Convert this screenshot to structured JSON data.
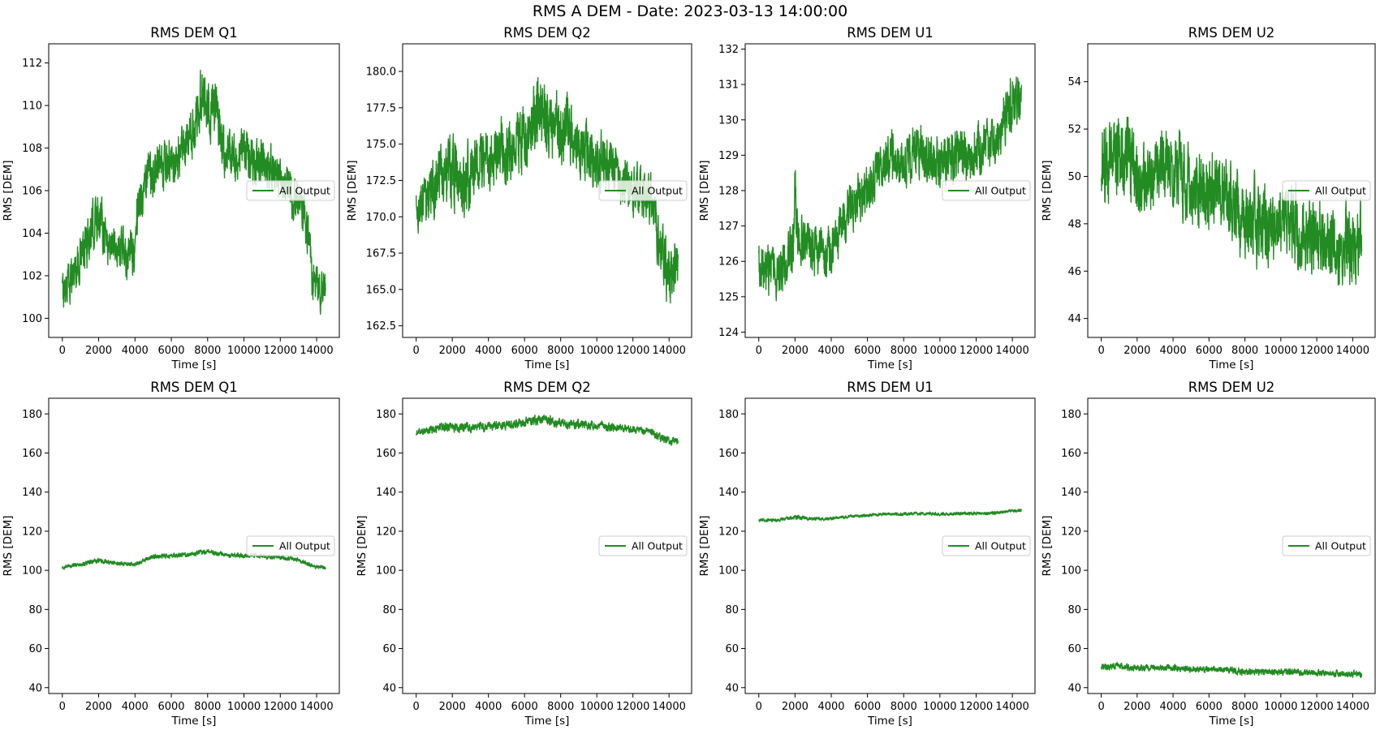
{
  "figure_title": "RMS A DEM - Date: 2023-03-13 14:00:00",
  "chart_data": [
    {
      "type": "line",
      "title": "RMS DEM Q1",
      "xlabel": "Time [s]",
      "ylabel": "RMS [DEM]",
      "xlim": [
        -750,
        15250
      ],
      "ylim": [
        99.1,
        112.9
      ],
      "xticks": [
        0,
        2000,
        4000,
        6000,
        8000,
        10000,
        12000,
        14000
      ],
      "yticks": [
        100,
        102,
        104,
        106,
        108,
        110,
        112
      ],
      "legend": {
        "position": "center-right",
        "entries": [
          "All Output"
        ]
      },
      "grid": false,
      "color": "#228b22",
      "series": [
        {
          "name": "All Output",
          "x": [
            0,
            500,
            1000,
            1500,
            2000,
            2200,
            2500,
            3000,
            3500,
            4000,
            4100,
            4500,
            5000,
            5500,
            6000,
            6500,
            7000,
            7500,
            7700,
            8000,
            8500,
            8800,
            9000,
            9500,
            10000,
            10500,
            11000,
            11500,
            12000,
            12500,
            13000,
            13300,
            13600,
            13800,
            14000,
            14500
          ],
          "center": [
            101.2,
            102.0,
            102.8,
            103.8,
            105.0,
            104.6,
            103.5,
            103.4,
            103.0,
            103.0,
            105.0,
            106.2,
            107.0,
            106.9,
            107.2,
            107.6,
            108.3,
            109.5,
            110.8,
            109.8,
            109.6,
            108.2,
            107.5,
            107.6,
            107.8,
            107.4,
            107.2,
            107.0,
            106.5,
            106.0,
            105.4,
            105.0,
            103.5,
            101.5,
            101.5,
            101.5
          ],
          "band": [
            1.2,
            1.3,
            1.3,
            1.4,
            1.6,
            1.5,
            1.4,
            1.3,
            1.3,
            1.3,
            1.5,
            1.5,
            1.5,
            1.5,
            1.5,
            1.5,
            1.6,
            1.6,
            1.7,
            1.6,
            1.6,
            1.5,
            1.4,
            1.4,
            1.4,
            1.4,
            1.4,
            1.3,
            1.3,
            1.3,
            1.3,
            1.3,
            1.3,
            1.3,
            1.3,
            1.3
          ]
        }
      ]
    },
    {
      "type": "line",
      "title": "RMS DEM Q2",
      "xlabel": "Time [s]",
      "ylabel": "RMS [DEM]",
      "xlim": [
        -750,
        15250
      ],
      "ylim": [
        161.7,
        181.9
      ],
      "xticks": [
        0,
        2000,
        4000,
        6000,
        8000,
        10000,
        12000,
        14000
      ],
      "yticks": [
        162.5,
        165.0,
        167.5,
        170.0,
        172.5,
        175.0,
        177.5,
        180.0
      ],
      "ytick_labels": [
        "162.5",
        "165.0",
        "167.5",
        "170.0",
        "172.5",
        "175.0",
        "177.5",
        "180.0"
      ],
      "legend": {
        "position": "center-right",
        "entries": [
          "All Output"
        ]
      },
      "grid": false,
      "color": "#228b22",
      "series": [
        {
          "name": "All Output",
          "x": [
            0,
            500,
            1000,
            1500,
            2000,
            2500,
            3000,
            3500,
            4000,
            4500,
            5000,
            5500,
            6000,
            6500,
            7000,
            7500,
            8000,
            8500,
            9000,
            9500,
            10000,
            10500,
            11000,
            11500,
            12000,
            12500,
            13000,
            13500,
            14000,
            14500
          ],
          "center": [
            170.5,
            171.0,
            172.0,
            173.0,
            173.5,
            172.0,
            173.0,
            174.5,
            173.5,
            175.0,
            174.5,
            175.0,
            175.5,
            177.0,
            177.5,
            176.5,
            175.5,
            176.0,
            174.5,
            174.0,
            174.0,
            173.5,
            173.0,
            172.5,
            172.0,
            171.5,
            171.0,
            168.0,
            166.0,
            166.0
          ],
          "band": [
            2.0,
            2.2,
            2.5,
            2.6,
            3.0,
            2.6,
            2.8,
            2.8,
            2.6,
            2.8,
            2.8,
            2.8,
            3.0,
            3.2,
            3.2,
            3.0,
            3.0,
            3.0,
            2.8,
            2.6,
            2.6,
            2.4,
            2.4,
            2.2,
            2.2,
            2.2,
            2.2,
            2.4,
            2.6,
            2.4
          ]
        }
      ]
    },
    {
      "type": "line",
      "title": "RMS DEM U1",
      "xlabel": "Time [s]",
      "ylabel": "RMS [DEM]",
      "xlim": [
        -750,
        15250
      ],
      "ylim": [
        123.85,
        132.15
      ],
      "xticks": [
        0,
        2000,
        4000,
        6000,
        8000,
        10000,
        12000,
        14000
      ],
      "yticks": [
        124,
        125,
        126,
        127,
        128,
        129,
        130,
        131,
        132
      ],
      "legend": {
        "position": "center-right",
        "entries": [
          "All Output"
        ]
      },
      "grid": false,
      "color": "#228b22",
      "series": [
        {
          "name": "All Output",
          "x": [
            0,
            500,
            1000,
            1500,
            1900,
            2000,
            2100,
            2500,
            3000,
            3500,
            4000,
            4500,
            5000,
            5500,
            6000,
            6500,
            7000,
            7500,
            8000,
            8500,
            9000,
            9500,
            10000,
            10500,
            11000,
            11500,
            12000,
            12500,
            13000,
            13500,
            14000,
            14500
          ],
          "center": [
            125.7,
            125.8,
            125.6,
            126.0,
            126.2,
            128.0,
            126.8,
            126.5,
            126.3,
            126.2,
            126.5,
            126.8,
            127.5,
            127.8,
            128.0,
            128.5,
            128.8,
            129.0,
            128.8,
            129.0,
            129.1,
            128.9,
            128.8,
            129.0,
            129.1,
            129.0,
            129.1,
            129.2,
            129.2,
            130.0,
            130.5,
            130.6
          ],
          "band": [
            0.9,
            0.9,
            0.9,
            0.9,
            1.0,
            1.2,
            1.0,
            0.9,
            0.9,
            0.9,
            0.9,
            0.9,
            0.9,
            0.9,
            0.9,
            0.9,
            0.9,
            0.9,
            0.9,
            0.9,
            0.9,
            0.9,
            0.9,
            0.9,
            0.9,
            0.9,
            0.9,
            0.9,
            0.9,
            1.0,
            1.0,
            0.9
          ]
        }
      ]
    },
    {
      "type": "line",
      "title": "RMS DEM U2",
      "xlabel": "Time [s]",
      "ylabel": "RMS [DEM]",
      "xlim": [
        -750,
        15250
      ],
      "ylim": [
        43.2,
        55.6
      ],
      "xticks": [
        0,
        2000,
        4000,
        6000,
        8000,
        10000,
        12000,
        14000
      ],
      "yticks": [
        44,
        46,
        48,
        50,
        52,
        54
      ],
      "legend": {
        "position": "center-right",
        "entries": [
          "All Output"
        ]
      },
      "grid": false,
      "color": "#228b22",
      "series": [
        {
          "name": "All Output",
          "x": [
            0,
            500,
            1000,
            1500,
            2000,
            2500,
            3000,
            3500,
            4000,
            4500,
            5000,
            5500,
            6000,
            6500,
            7000,
            7500,
            8000,
            8500,
            9000,
            9500,
            10000,
            10500,
            11000,
            11500,
            12000,
            12500,
            13000,
            13500,
            14000,
            14500
          ],
          "center": [
            50.5,
            51.0,
            51.0,
            50.8,
            50.0,
            50.0,
            50.0,
            50.5,
            50.3,
            50.0,
            49.5,
            49.5,
            49.3,
            49.2,
            49.2,
            48.8,
            48.0,
            48.0,
            48.0,
            47.8,
            48.0,
            48.0,
            47.8,
            47.5,
            47.5,
            47.2,
            47.0,
            47.2,
            47.0,
            47.0
          ],
          "band": [
            2.0,
            2.2,
            2.2,
            2.2,
            2.0,
            2.0,
            2.0,
            2.0,
            2.0,
            2.0,
            2.0,
            2.0,
            2.0,
            2.0,
            2.0,
            2.0,
            2.2,
            2.2,
            2.0,
            2.0,
            2.0,
            2.0,
            2.0,
            2.0,
            2.0,
            2.0,
            2.0,
            2.0,
            2.0,
            2.0
          ]
        }
      ]
    },
    {
      "type": "line",
      "title": "RMS DEM Q1",
      "xlabel": "Time [s]",
      "ylabel": "RMS [DEM]",
      "xlim": [
        -750,
        15250
      ],
      "ylim": [
        37,
        188
      ],
      "xticks": [
        0,
        2000,
        4000,
        6000,
        8000,
        10000,
        12000,
        14000
      ],
      "yticks": [
        40,
        60,
        80,
        100,
        120,
        140,
        160,
        180
      ],
      "legend": {
        "position": "center-right",
        "entries": [
          "All Output"
        ]
      },
      "grid": false,
      "color": "#228b22",
      "series": [
        {
          "name": "All Output",
          "x": [
            0,
            1000,
            2000,
            3000,
            4000,
            5000,
            6000,
            7000,
            8000,
            9000,
            10000,
            11000,
            12000,
            13000,
            13600,
            14000,
            14500
          ],
          "center": [
            101.5,
            103.0,
            105.0,
            103.5,
            103.0,
            107.0,
            107.2,
            108.0,
            109.8,
            107.8,
            107.6,
            107.2,
            106.5,
            105.4,
            103.0,
            101.5,
            101.5
          ],
          "band": [
            1.3,
            1.3,
            1.6,
            1.3,
            1.3,
            1.5,
            1.5,
            1.5,
            1.6,
            1.5,
            1.4,
            1.4,
            1.3,
            1.3,
            1.3,
            1.3,
            1.3
          ]
        }
      ]
    },
    {
      "type": "line",
      "title": "RMS DEM Q2",
      "xlabel": "Time [s]",
      "ylabel": "RMS [DEM]",
      "xlim": [
        -750,
        15250
      ],
      "ylim": [
        37,
        188
      ],
      "xticks": [
        0,
        2000,
        4000,
        6000,
        8000,
        10000,
        12000,
        14000
      ],
      "yticks": [
        40,
        60,
        80,
        100,
        120,
        140,
        160,
        180
      ],
      "legend": {
        "position": "center-right",
        "entries": [
          "All Output"
        ]
      },
      "grid": false,
      "color": "#228b22",
      "series": [
        {
          "name": "All Output",
          "x": [
            0,
            1000,
            2000,
            3000,
            4000,
            5000,
            6000,
            7000,
            8000,
            9000,
            10000,
            11000,
            12000,
            13000,
            13500,
            14000,
            14500
          ],
          "center": [
            170.5,
            172.0,
            173.5,
            173.0,
            173.5,
            174.5,
            175.5,
            177.5,
            175.5,
            174.5,
            174.0,
            173.0,
            172.0,
            171.0,
            168.0,
            166.0,
            166.0
          ],
          "band": [
            2.0,
            2.5,
            3.0,
            2.8,
            2.6,
            2.8,
            3.0,
            3.2,
            3.0,
            2.8,
            2.6,
            2.4,
            2.2,
            2.2,
            2.4,
            2.6,
            2.4
          ]
        }
      ]
    },
    {
      "type": "line",
      "title": "RMS DEM U1",
      "xlabel": "Time [s]",
      "ylabel": "RMS [DEM]",
      "xlim": [
        -750,
        15250
      ],
      "ylim": [
        37,
        188
      ],
      "xticks": [
        0,
        2000,
        4000,
        6000,
        8000,
        10000,
        12000,
        14000
      ],
      "yticks": [
        40,
        60,
        80,
        100,
        120,
        140,
        160,
        180
      ],
      "legend": {
        "position": "center-right",
        "entries": [
          "All Output"
        ]
      },
      "grid": false,
      "color": "#228b22",
      "series": [
        {
          "name": "All Output",
          "x": [
            0,
            1000,
            2000,
            3000,
            4000,
            5000,
            6000,
            7000,
            8000,
            9000,
            10000,
            11000,
            12000,
            13000,
            14000,
            14500
          ],
          "center": [
            125.7,
            125.6,
            127.0,
            126.3,
            126.5,
            127.5,
            128.0,
            128.8,
            128.8,
            129.1,
            128.8,
            129.1,
            129.1,
            129.2,
            130.5,
            130.6
          ],
          "band": [
            1.0,
            1.0,
            1.4,
            1.0,
            1.0,
            1.0,
            1.0,
            1.0,
            1.0,
            1.0,
            1.0,
            1.0,
            1.0,
            1.0,
            1.0,
            1.0
          ]
        }
      ]
    },
    {
      "type": "line",
      "title": "RMS DEM U2",
      "xlabel": "Time [s]",
      "ylabel": "RMS [DEM]",
      "xlim": [
        -750,
        15250
      ],
      "ylim": [
        37,
        188
      ],
      "xticks": [
        0,
        2000,
        4000,
        6000,
        8000,
        10000,
        12000,
        14000
      ],
      "yticks": [
        40,
        60,
        80,
        100,
        120,
        140,
        160,
        180
      ],
      "legend": {
        "position": "center-right",
        "entries": [
          "All Output"
        ]
      },
      "grid": false,
      "color": "#228b22",
      "series": [
        {
          "name": "All Output",
          "x": [
            0,
            1000,
            2000,
            3000,
            4000,
            5000,
            6000,
            7000,
            8000,
            9000,
            10000,
            11000,
            12000,
            13000,
            14000,
            14500
          ],
          "center": [
            50.5,
            51.0,
            50.0,
            50.0,
            50.3,
            49.5,
            49.3,
            49.2,
            48.0,
            48.0,
            48.0,
            47.8,
            47.5,
            47.0,
            47.0,
            47.0
          ],
          "band": [
            2.0,
            2.2,
            2.0,
            2.0,
            2.0,
            2.0,
            2.0,
            2.0,
            2.2,
            2.0,
            2.0,
            2.0,
            2.0,
            2.0,
            2.0,
            2.0
          ]
        }
      ]
    }
  ]
}
